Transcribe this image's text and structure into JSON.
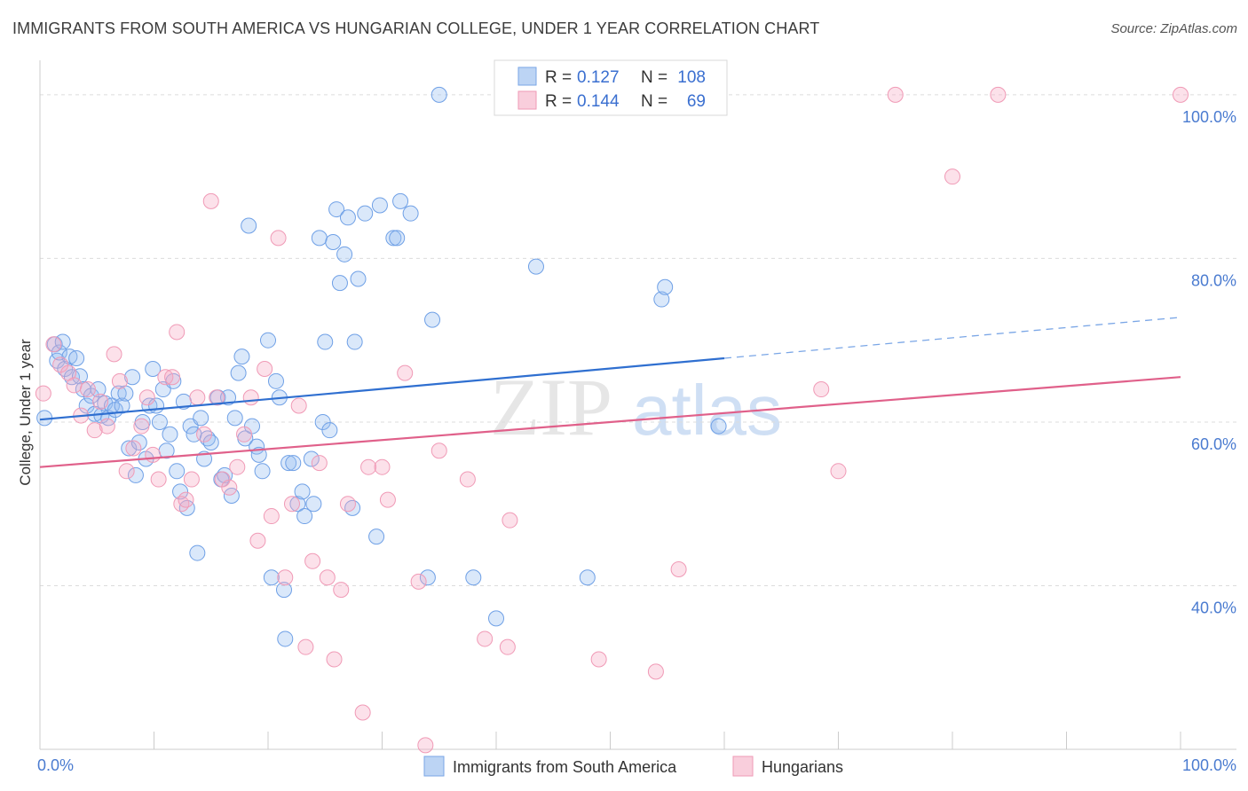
{
  "header": {
    "title": "IMMIGRANTS FROM SOUTH AMERICA VS HUNGARIAN COLLEGE, UNDER 1 YEAR CORRELATION CHART",
    "source": "Source: ZipAtlas.com"
  },
  "watermark": {
    "zip": "ZIP",
    "atlas": "atlas"
  },
  "legend": {
    "series1": {
      "r_label": "R =",
      "r_value": "0.127",
      "n_label": "N =",
      "n_value": "108"
    },
    "series2": {
      "r_label": "R =",
      "r_value": "0.144",
      "n_label": "N =",
      "n_value": "69"
    }
  },
  "chart_data": {
    "type": "scatter",
    "title": "IMMIGRANTS FROM SOUTH AMERICA VS HUNGARIAN COLLEGE, UNDER 1 YEAR CORRELATION CHART",
    "xlabel": "",
    "ylabel": "College, Under 1 year",
    "xlim": [
      0,
      100
    ],
    "ylim": [
      20,
      104
    ],
    "x_tick_labels": [
      "0.0%",
      "100.0%"
    ],
    "y_ticks": [
      40,
      60,
      80,
      100
    ],
    "y_tick_labels": [
      "40.0%",
      "60.0%",
      "80.0%",
      "100.0%"
    ],
    "grid": true,
    "legend_position": "top-center",
    "colors": {
      "blue": "#6fa0e6",
      "blue_line": "#2f6fd0",
      "pink": "#f09ab6",
      "pink_line": "#e0608a"
    },
    "series": [
      {
        "name": "Immigrants from South America",
        "color": "#6fa0e6",
        "trend": {
          "x0": 0,
          "y0": 60.3,
          "x1": 60,
          "y1": 67.8,
          "dash_to": 100,
          "dash_y": 72.8
        },
        "points": [
          [
            0.4,
            60.5
          ],
          [
            1.3,
            69.5
          ],
          [
            1.5,
            67.5
          ],
          [
            1.7,
            68.5
          ],
          [
            2.0,
            69.8
          ],
          [
            2.2,
            66.5
          ],
          [
            2.6,
            68.0
          ],
          [
            2.8,
            65.5
          ],
          [
            3.2,
            67.8
          ],
          [
            3.5,
            65.6
          ],
          [
            3.8,
            64.0
          ],
          [
            4.1,
            62.0
          ],
          [
            4.5,
            63.2
          ],
          [
            4.8,
            61.0
          ],
          [
            5.1,
            64.0
          ],
          [
            5.4,
            60.8
          ],
          [
            5.7,
            62.3
          ],
          [
            6.0,
            60.5
          ],
          [
            6.3,
            62.0
          ],
          [
            6.6,
            61.5
          ],
          [
            6.9,
            63.5
          ],
          [
            7.2,
            62.0
          ],
          [
            7.5,
            63.5
          ],
          [
            7.8,
            56.8
          ],
          [
            8.1,
            65.5
          ],
          [
            8.4,
            53.5
          ],
          [
            8.7,
            57.5
          ],
          [
            9.0,
            60.0
          ],
          [
            9.3,
            55.5
          ],
          [
            9.6,
            62.0
          ],
          [
            9.9,
            66.5
          ],
          [
            10.2,
            62.0
          ],
          [
            10.5,
            60.0
          ],
          [
            10.8,
            64.0
          ],
          [
            11.1,
            56.5
          ],
          [
            11.4,
            58.5
          ],
          [
            11.7,
            65.0
          ],
          [
            12.0,
            54.0
          ],
          [
            12.3,
            51.5
          ],
          [
            12.6,
            62.5
          ],
          [
            12.9,
            49.5
          ],
          [
            13.2,
            59.5
          ],
          [
            13.5,
            58.5
          ],
          [
            13.8,
            44.0
          ],
          [
            14.1,
            60.5
          ],
          [
            14.4,
            55.5
          ],
          [
            14.7,
            58.0
          ],
          [
            15.0,
            57.5
          ],
          [
            15.6,
            63.0
          ],
          [
            15.9,
            53.0
          ],
          [
            16.2,
            53.5
          ],
          [
            16.5,
            63.0
          ],
          [
            16.8,
            51.0
          ],
          [
            17.1,
            60.5
          ],
          [
            17.4,
            66.0
          ],
          [
            17.7,
            68.0
          ],
          [
            18.0,
            58.0
          ],
          [
            18.3,
            84.0
          ],
          [
            18.6,
            59.5
          ],
          [
            19.0,
            57.0
          ],
          [
            19.2,
            56.0
          ],
          [
            19.5,
            54.0
          ],
          [
            20.0,
            70.0
          ],
          [
            20.3,
            41.0
          ],
          [
            20.7,
            65.0
          ],
          [
            21.0,
            63.0
          ],
          [
            21.4,
            39.5
          ],
          [
            21.5,
            33.5
          ],
          [
            21.8,
            55.0
          ],
          [
            22.2,
            55.0
          ],
          [
            22.6,
            50.0
          ],
          [
            23.0,
            51.5
          ],
          [
            23.2,
            48.5
          ],
          [
            23.8,
            55.5
          ],
          [
            24.0,
            50.0
          ],
          [
            24.5,
            82.5
          ],
          [
            24.8,
            60.0
          ],
          [
            25.0,
            69.8
          ],
          [
            25.4,
            59.0
          ],
          [
            25.7,
            82.0
          ],
          [
            26.0,
            86.0
          ],
          [
            26.3,
            77.0
          ],
          [
            26.7,
            80.5
          ],
          [
            27.0,
            85.0
          ],
          [
            27.4,
            49.5
          ],
          [
            27.6,
            69.8
          ],
          [
            27.9,
            77.5
          ],
          [
            28.5,
            85.5
          ],
          [
            29.5,
            46.0
          ],
          [
            29.8,
            86.5
          ],
          [
            31.0,
            82.5
          ],
          [
            31.3,
            82.5
          ],
          [
            31.6,
            87.0
          ],
          [
            32.5,
            85.5
          ],
          [
            34.0,
            41.0
          ],
          [
            34.4,
            72.5
          ],
          [
            35.0,
            100.0
          ],
          [
            38.0,
            41.0
          ],
          [
            40.0,
            36.0
          ],
          [
            43.5,
            79.0
          ],
          [
            48.0,
            41.0
          ],
          [
            54.5,
            75.0
          ],
          [
            54.8,
            76.5
          ],
          [
            59.5,
            59.5
          ]
        ]
      },
      {
        "name": "Hungarians",
        "color": "#f09ab6",
        "trend": {
          "x0": 0,
          "y0": 54.5,
          "x1": 100,
          "y1": 65.5
        },
        "points": [
          [
            0.3,
            63.5
          ],
          [
            1.2,
            69.5
          ],
          [
            1.8,
            67.0
          ],
          [
            2.5,
            66.0
          ],
          [
            3.0,
            64.5
          ],
          [
            3.6,
            60.8
          ],
          [
            4.2,
            64.0
          ],
          [
            4.8,
            59.0
          ],
          [
            5.3,
            62.5
          ],
          [
            5.9,
            59.5
          ],
          [
            6.5,
            68.3
          ],
          [
            7.0,
            65.0
          ],
          [
            7.6,
            54.0
          ],
          [
            8.2,
            56.8
          ],
          [
            8.9,
            59.5
          ],
          [
            9.4,
            63.0
          ],
          [
            9.9,
            56.0
          ],
          [
            10.4,
            53.0
          ],
          [
            11.0,
            65.5
          ],
          [
            11.6,
            65.5
          ],
          [
            12.0,
            71.0
          ],
          [
            12.4,
            50.0
          ],
          [
            12.8,
            50.5
          ],
          [
            13.3,
            53.0
          ],
          [
            13.8,
            63.0
          ],
          [
            14.4,
            58.5
          ],
          [
            15.0,
            87.0
          ],
          [
            15.5,
            63.0
          ],
          [
            16.0,
            53.0
          ],
          [
            16.6,
            52.0
          ],
          [
            17.3,
            54.5
          ],
          [
            17.9,
            58.5
          ],
          [
            18.5,
            63.0
          ],
          [
            19.1,
            45.5
          ],
          [
            19.7,
            66.5
          ],
          [
            20.3,
            48.5
          ],
          [
            20.9,
            82.5
          ],
          [
            21.5,
            41.0
          ],
          [
            22.1,
            50.0
          ],
          [
            22.7,
            62.0
          ],
          [
            23.3,
            32.5
          ],
          [
            23.9,
            43.0
          ],
          [
            24.5,
            55.0
          ],
          [
            25.2,
            41.0
          ],
          [
            25.8,
            31.0
          ],
          [
            26.4,
            39.5
          ],
          [
            27.0,
            50.0
          ],
          [
            28.3,
            24.5
          ],
          [
            28.8,
            54.5
          ],
          [
            30.0,
            54.5
          ],
          [
            30.5,
            50.5
          ],
          [
            32.0,
            66.0
          ],
          [
            33.2,
            40.5
          ],
          [
            33.8,
            20.5
          ],
          [
            35.0,
            56.5
          ],
          [
            37.5,
            53.0
          ],
          [
            39.0,
            33.5
          ],
          [
            41.0,
            32.5
          ],
          [
            41.2,
            48.0
          ],
          [
            49.0,
            31.0
          ],
          [
            54.0,
            29.5
          ],
          [
            56.0,
            42.0
          ],
          [
            68.5,
            64.0
          ],
          [
            70.0,
            54.0
          ],
          [
            75.0,
            100.0
          ],
          [
            80.0,
            90.0
          ],
          [
            84.0,
            100.0
          ],
          [
            100.0,
            100.0
          ]
        ]
      }
    ]
  },
  "bottom_legend": {
    "series1_label": "Immigrants from South America",
    "series2_label": "Hungarians"
  }
}
